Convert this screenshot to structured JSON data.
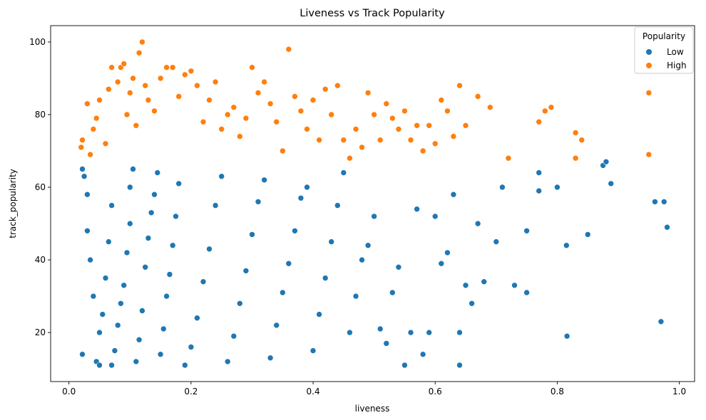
{
  "chart_data": {
    "type": "scatter",
    "title": "Liveness vs Track Popularity",
    "xlabel": "liveness",
    "ylabel": "track_popularity",
    "xlim": [
      -0.03,
      1.025
    ],
    "ylim": [
      6.5,
      104.5
    ],
    "x_ticks": [
      "0.0",
      "0.2",
      "0.4",
      "0.6",
      "0.8",
      "1.0"
    ],
    "x_tick_values": [
      0.0,
      0.2,
      0.4,
      0.6,
      0.8,
      1.0
    ],
    "y_ticks": [
      "20",
      "40",
      "60",
      "80",
      "100"
    ],
    "y_tick_values": [
      20,
      40,
      60,
      80,
      100
    ],
    "grid": false,
    "legend": {
      "title": "Popularity",
      "placement": "top-right",
      "entries": [
        {
          "label": "Low",
          "color": "#1f77b4"
        },
        {
          "label": "High",
          "color": "#ff7f0e"
        }
      ]
    },
    "series": [
      {
        "name": "Low",
        "color": "#1f77b4",
        "points": [
          [
            0.022,
            14
          ],
          [
            0.022,
            65
          ],
          [
            0.025,
            63
          ],
          [
            0.03,
            58
          ],
          [
            0.03,
            48
          ],
          [
            0.035,
            40
          ],
          [
            0.04,
            30
          ],
          [
            0.045,
            12
          ],
          [
            0.05,
            11
          ],
          [
            0.05,
            20
          ],
          [
            0.055,
            25
          ],
          [
            0.06,
            35
          ],
          [
            0.065,
            45
          ],
          [
            0.07,
            55
          ],
          [
            0.07,
            11
          ],
          [
            0.075,
            15
          ],
          [
            0.08,
            22
          ],
          [
            0.085,
            28
          ],
          [
            0.09,
            33
          ],
          [
            0.095,
            42
          ],
          [
            0.1,
            50
          ],
          [
            0.1,
            60
          ],
          [
            0.105,
            65
          ],
          [
            0.11,
            12
          ],
          [
            0.115,
            18
          ],
          [
            0.12,
            26
          ],
          [
            0.125,
            38
          ],
          [
            0.13,
            46
          ],
          [
            0.135,
            53
          ],
          [
            0.14,
            58
          ],
          [
            0.145,
            64
          ],
          [
            0.15,
            14
          ],
          [
            0.155,
            21
          ],
          [
            0.16,
            30
          ],
          [
            0.165,
            36
          ],
          [
            0.17,
            44
          ],
          [
            0.175,
            52
          ],
          [
            0.18,
            61
          ],
          [
            0.19,
            11
          ],
          [
            0.2,
            16
          ],
          [
            0.21,
            24
          ],
          [
            0.22,
            34
          ],
          [
            0.23,
            43
          ],
          [
            0.24,
            55
          ],
          [
            0.25,
            63
          ],
          [
            0.26,
            12
          ],
          [
            0.27,
            19
          ],
          [
            0.28,
            28
          ],
          [
            0.29,
            37
          ],
          [
            0.3,
            47
          ],
          [
            0.31,
            56
          ],
          [
            0.32,
            62
          ],
          [
            0.33,
            13
          ],
          [
            0.34,
            22
          ],
          [
            0.35,
            31
          ],
          [
            0.36,
            39
          ],
          [
            0.37,
            48
          ],
          [
            0.38,
            57
          ],
          [
            0.39,
            60
          ],
          [
            0.4,
            15
          ],
          [
            0.41,
            25
          ],
          [
            0.42,
            35
          ],
          [
            0.43,
            45
          ],
          [
            0.44,
            55
          ],
          [
            0.45,
            64
          ],
          [
            0.46,
            20
          ],
          [
            0.47,
            30
          ],
          [
            0.48,
            40
          ],
          [
            0.49,
            44
          ],
          [
            0.5,
            52
          ],
          [
            0.51,
            21
          ],
          [
            0.52,
            17
          ],
          [
            0.53,
            31
          ],
          [
            0.54,
            38
          ],
          [
            0.55,
            11
          ],
          [
            0.56,
            20
          ],
          [
            0.57,
            54
          ],
          [
            0.58,
            14
          ],
          [
            0.59,
            20
          ],
          [
            0.6,
            52
          ],
          [
            0.61,
            39
          ],
          [
            0.62,
            42
          ],
          [
            0.63,
            58
          ],
          [
            0.64,
            11
          ],
          [
            0.64,
            20
          ],
          [
            0.65,
            33
          ],
          [
            0.66,
            28
          ],
          [
            0.67,
            50
          ],
          [
            0.68,
            34
          ],
          [
            0.7,
            45
          ],
          [
            0.71,
            60
          ],
          [
            0.73,
            33
          ],
          [
            0.75,
            31
          ],
          [
            0.75,
            48
          ],
          [
            0.77,
            64
          ],
          [
            0.77,
            59
          ],
          [
            0.8,
            60
          ],
          [
            0.815,
            44
          ],
          [
            0.816,
            19
          ],
          [
            0.85,
            47
          ],
          [
            0.875,
            66
          ],
          [
            0.88,
            67
          ],
          [
            0.888,
            61
          ],
          [
            0.96,
            56
          ],
          [
            0.97,
            23
          ],
          [
            0.975,
            56
          ],
          [
            0.98,
            49
          ]
        ]
      },
      {
        "name": "High",
        "color": "#ff7f0e",
        "points": [
          [
            0.02,
            71
          ],
          [
            0.022,
            73
          ],
          [
            0.03,
            83
          ],
          [
            0.035,
            69
          ],
          [
            0.04,
            76
          ],
          [
            0.045,
            79
          ],
          [
            0.05,
            84
          ],
          [
            0.06,
            72
          ],
          [
            0.065,
            87
          ],
          [
            0.07,
            93
          ],
          [
            0.08,
            89
          ],
          [
            0.085,
            93
          ],
          [
            0.09,
            94
          ],
          [
            0.095,
            80
          ],
          [
            0.1,
            86
          ],
          [
            0.105,
            90
          ],
          [
            0.11,
            77
          ],
          [
            0.115,
            97
          ],
          [
            0.12,
            100
          ],
          [
            0.125,
            88
          ],
          [
            0.13,
            84
          ],
          [
            0.14,
            81
          ],
          [
            0.15,
            90
          ],
          [
            0.16,
            93
          ],
          [
            0.17,
            93
          ],
          [
            0.18,
            85
          ],
          [
            0.19,
            91
          ],
          [
            0.2,
            92
          ],
          [
            0.21,
            88
          ],
          [
            0.22,
            78
          ],
          [
            0.23,
            84
          ],
          [
            0.24,
            89
          ],
          [
            0.25,
            76
          ],
          [
            0.26,
            80
          ],
          [
            0.27,
            82
          ],
          [
            0.28,
            74
          ],
          [
            0.29,
            79
          ],
          [
            0.3,
            93
          ],
          [
            0.31,
            86
          ],
          [
            0.32,
            89
          ],
          [
            0.33,
            83
          ],
          [
            0.34,
            78
          ],
          [
            0.35,
            70
          ],
          [
            0.36,
            98
          ],
          [
            0.37,
            85
          ],
          [
            0.38,
            81
          ],
          [
            0.39,
            76
          ],
          [
            0.4,
            84
          ],
          [
            0.41,
            73
          ],
          [
            0.42,
            87
          ],
          [
            0.43,
            80
          ],
          [
            0.44,
            88
          ],
          [
            0.45,
            73
          ],
          [
            0.46,
            68
          ],
          [
            0.47,
            76
          ],
          [
            0.48,
            71
          ],
          [
            0.49,
            86
          ],
          [
            0.5,
            80
          ],
          [
            0.51,
            73
          ],
          [
            0.52,
            83
          ],
          [
            0.53,
            79
          ],
          [
            0.54,
            76
          ],
          [
            0.55,
            81
          ],
          [
            0.56,
            73
          ],
          [
            0.57,
            77
          ],
          [
            0.58,
            70
          ],
          [
            0.59,
            77
          ],
          [
            0.6,
            72
          ],
          [
            0.61,
            84
          ],
          [
            0.62,
            81
          ],
          [
            0.63,
            74
          ],
          [
            0.64,
            88
          ],
          [
            0.65,
            77
          ],
          [
            0.67,
            85
          ],
          [
            0.69,
            82
          ],
          [
            0.72,
            68
          ],
          [
            0.77,
            78
          ],
          [
            0.78,
            81
          ],
          [
            0.79,
            82
          ],
          [
            0.83,
            68
          ],
          [
            0.83,
            75
          ],
          [
            0.84,
            73
          ],
          [
            0.95,
            86
          ],
          [
            0.95,
            69
          ]
        ]
      }
    ]
  }
}
